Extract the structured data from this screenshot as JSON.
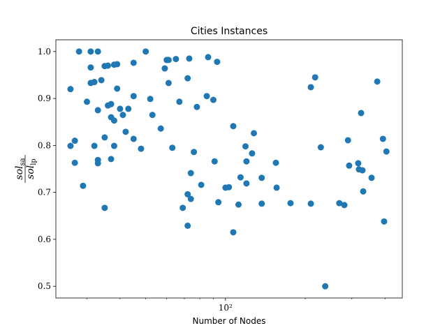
{
  "chart_data": {
    "type": "scatter",
    "title": "Cities Instances",
    "x_label": "Number of Nodes",
    "y_label": {
      "numerator": "sol",
      "numerator_sub": "sa",
      "denominator": "sol",
      "denominator_sub": "lp"
    },
    "color": "#1f77b4",
    "xscale": "log",
    "grid": false,
    "xlim": [
      22.9,
      465
    ],
    "ylim": [
      0.475,
      1.025
    ],
    "xticks": [
      {
        "value": 100,
        "label": "10²"
      }
    ],
    "yticks": [
      0.5,
      0.6,
      0.7,
      0.8,
      0.9,
      {
        "value": 1,
        "label": "1.0"
      }
    ],
    "x": [
      26,
      26,
      27,
      27,
      29,
      28,
      30,
      31,
      31,
      31,
      32,
      32,
      33,
      33,
      33,
      33,
      34,
      35,
      35,
      35,
      36,
      36,
      37,
      37,
      37,
      38,
      38,
      38,
      39,
      39,
      40,
      41,
      42,
      43,
      45,
      45,
      45,
      48,
      50,
      52,
      53,
      57,
      59,
      60,
      61,
      61,
      63,
      65,
      67,
      69,
      72,
      72,
      72,
      73,
      74,
      74,
      76,
      78,
      81,
      85,
      86,
      90,
      91,
      93,
      94,
      100,
      103,
      107,
      107,
      112,
      114,
      119,
      120,
      120,
      126,
      128,
      137,
      137,
      155,
      156,
      176,
      210,
      210,
      218,
      229,
      238,
      269,
      281,
      290,
      293,
      317,
      319,
      325,
      329,
      331,
      356,
      374,
      393,
      397,
      405
    ],
    "values": [
      0.92,
      0.799,
      0.81,
      0.763,
      0.714,
      1.0,
      0.893,
      1.0,
      0.966,
      0.933,
      0.935,
      0.799,
      1.0,
      0.875,
      0.769,
      0.762,
      0.939,
      0.969,
      0.817,
      0.667,
      0.97,
      0.885,
      0.888,
      0.86,
      0.771,
      0.972,
      0.853,
      0.799,
      0.973,
      0.921,
      0.878,
      0.865,
      0.829,
      0.878,
      0.905,
      0.976,
      0.814,
      0.793,
      1.0,
      0.899,
      0.865,
      0.836,
      0.964,
      0.982,
      0.982,
      0.933,
      0.795,
      0.984,
      0.893,
      0.667,
      0.943,
      0.696,
      0.629,
      0.985,
      0.741,
      0.686,
      0.786,
      0.882,
      0.716,
      0.905,
      0.988,
      0.897,
      0.766,
      0.978,
      0.679,
      0.71,
      0.711,
      0.841,
      0.615,
      0.674,
      0.732,
      0.798,
      0.766,
      0.719,
      0.783,
      0.826,
      0.731,
      0.676,
      0.763,
      0.71,
      0.677,
      0.924,
      0.676,
      0.945,
      0.796,
      0.5,
      0.677,
      0.673,
      0.811,
      0.757,
      0.762,
      0.749,
      0.869,
      0.747,
      0.702,
      0.731,
      0.936,
      0.814,
      0.638,
      0.787
    ]
  }
}
